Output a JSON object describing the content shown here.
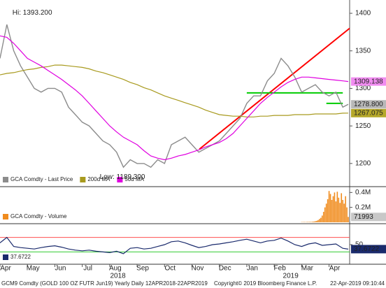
{
  "chart_data": [
    {
      "type": "line",
      "x": [
        0,
        0.25,
        0.5,
        0.75,
        1,
        1.25,
        1.5,
        1.75,
        2,
        2.25,
        2.5,
        2.75,
        3,
        3.25,
        3.5,
        3.75,
        4,
        4.25,
        4.5,
        4.75,
        5,
        5.25,
        5.5,
        5.75,
        6,
        6.25,
        6.5,
        6.75,
        7,
        7.25,
        7.5,
        7.75,
        8,
        8.25,
        8.5,
        8.75,
        9,
        9.25,
        9.5,
        9.75,
        10,
        10.25,
        10.5,
        10.75,
        11,
        11.25,
        11.5,
        11.75,
        12,
        12.25,
        12.5,
        12.7
      ],
      "series": [
        {
          "name": "GCA Comdty - Last Price",
          "color": "#8c8c8c",
          "last_label": "1278.800",
          "tag_color": "#b8b8b8",
          "values": [
            1340,
            1385,
            1350,
            1330,
            1315,
            1300,
            1295,
            1300,
            1300,
            1295,
            1275,
            1265,
            1255,
            1250,
            1240,
            1230,
            1225,
            1215,
            1195,
            1205,
            1200,
            1200,
            1195,
            1205,
            1200,
            1225,
            1230,
            1235,
            1225,
            1215,
            1220,
            1225,
            1230,
            1240,
            1250,
            1260,
            1280,
            1290,
            1290,
            1310,
            1320,
            1340,
            1330,
            1315,
            1295,
            1300,
            1305,
            1295,
            1290,
            1295,
            1275,
            1278.8
          ]
        },
        {
          "name": "200d MA",
          "color": "#a89a1e",
          "last_label": "1267.075",
          "tag_color": "#b5a82a",
          "values": [
            1318,
            1320,
            1321,
            1323,
            1325,
            1326,
            1328,
            1329,
            1331,
            1331,
            1330,
            1329,
            1328,
            1326,
            1323,
            1321,
            1318,
            1315,
            1312,
            1308,
            1305,
            1301,
            1298,
            1294,
            1290,
            1287,
            1284,
            1281,
            1278,
            1275,
            1271,
            1268,
            1265,
            1264,
            1263,
            1263,
            1262,
            1262,
            1263,
            1263,
            1264,
            1264,
            1264,
            1265,
            1265,
            1265,
            1266,
            1266,
            1266,
            1266,
            1267,
            1267.075
          ]
        },
        {
          "name": "50d MA",
          "color": "#e000e0",
          "last_label": "1309.138",
          "tag_color": "#f08cf0",
          "values": [
            1370,
            1368,
            1360,
            1350,
            1340,
            1335,
            1330,
            1324,
            1318,
            1312,
            1305,
            1298,
            1290,
            1280,
            1270,
            1260,
            1250,
            1242,
            1235,
            1230,
            1225,
            1217,
            1210,
            1207,
            1205,
            1207,
            1210,
            1212,
            1215,
            1218,
            1222,
            1225,
            1228,
            1233,
            1240,
            1250,
            1260,
            1270,
            1280,
            1288,
            1295,
            1302,
            1308,
            1312,
            1315,
            1315,
            1314,
            1313,
            1312,
            1311,
            1310,
            1309.138
          ]
        }
      ],
      "xlim": [
        0,
        12.75
      ],
      "ylim": [
        1171,
        1414
      ],
      "yticks": [
        1200,
        1250,
        1300,
        1350,
        1400
      ],
      "annotations": [
        {
          "text": "Hi: 1393.200",
          "x": 0.25,
          "y": 1393.2
        },
        {
          "text": "Low: 1189.300",
          "x": 4.3,
          "y": 1189.3
        }
      ],
      "trendlines": [
        {
          "color": "#ff0000",
          "x": [
            7.27,
            12.75
          ],
          "y": [
            1219,
            1380
          ]
        },
        {
          "color": "#00cc00",
          "x": [
            9.0,
            12.5
          ],
          "y": [
            1294,
            1294
          ]
        },
        {
          "color": "#00cc00",
          "x": [
            11.9,
            12.5
          ],
          "y": [
            1280,
            1280
          ]
        }
      ]
    },
    {
      "type": "bar",
      "x": [
        11.0,
        11.05,
        11.1,
        11.15,
        11.2,
        11.25,
        11.3,
        11.35,
        11.4,
        11.45,
        11.5,
        11.55,
        11.6,
        11.65,
        11.7,
        11.75,
        11.8,
        11.85,
        11.9,
        11.95,
        12.0,
        12.05,
        12.1,
        12.15,
        12.2,
        12.25,
        12.3,
        12.35,
        12.4,
        12.45,
        12.5,
        12.55,
        12.6,
        12.65,
        12.7
      ],
      "series": [
        {
          "name": "GCA Comdty - Volume",
          "color": "#f08c1e",
          "last_label": "71993",
          "tag_color": "#c8c8c8",
          "values": [
            3000,
            3500,
            4000,
            3000,
            5000,
            4500,
            6000,
            5000,
            8000,
            10000,
            15000,
            20000,
            30000,
            45000,
            60000,
            90000,
            140000,
            200000,
            250000,
            310000,
            420000,
            380000,
            300000,
            350000,
            400000,
            280000,
            410000,
            330000,
            260000,
            390000,
            300000,
            250000,
            350000,
            200000,
            71993
          ]
        }
      ],
      "xlim": [
        0,
        12.75
      ],
      "ylim": [
        0,
        450000
      ],
      "yticks": [
        {
          "value": 200000,
          "label": "0.2M"
        },
        {
          "value": 400000,
          "label": "0.4M"
        }
      ]
    },
    {
      "type": "line",
      "x": [
        0,
        0.25,
        0.5,
        0.75,
        1,
        1.25,
        1.5,
        1.75,
        2,
        2.25,
        2.5,
        2.75,
        3,
        3.25,
        3.5,
        3.75,
        4,
        4.25,
        4.5,
        4.75,
        5,
        5.25,
        5.5,
        5.75,
        6,
        6.25,
        6.5,
        6.75,
        7,
        7.25,
        7.5,
        7.75,
        8,
        8.25,
        8.5,
        8.75,
        9,
        9.25,
        9.5,
        9.75,
        10,
        10.25,
        10.5,
        10.75,
        11,
        11.25,
        11.5,
        11.75,
        12,
        12.25,
        12.5,
        12.7
      ],
      "series": [
        {
          "color": "#1a2a6c",
          "last_label": "37.6722",
          "tag_color": "#1a2a6c",
          "values": [
            55,
            70,
            45,
            42,
            40,
            38,
            42,
            45,
            47,
            43,
            38,
            35,
            33,
            35,
            32,
            30,
            28,
            32,
            25,
            40,
            42,
            38,
            40,
            45,
            50,
            58,
            60,
            55,
            48,
            42,
            45,
            50,
            52,
            55,
            58,
            62,
            65,
            60,
            55,
            60,
            62,
            68,
            60,
            50,
            45,
            52,
            55,
            48,
            50,
            52,
            40,
            37.6722
          ]
        }
      ],
      "levels": [
        {
          "value": 70,
          "color": "#ff5050"
        },
        {
          "value": 30,
          "color": "#33cc33"
        }
      ],
      "xlim": [
        0,
        12.75
      ],
      "ylim": [
        0,
        100
      ],
      "yticks": [
        50
      ],
      "xticks": [
        {
          "value": 0,
          "label": "Apr"
        },
        {
          "value": 1,
          "label": "May"
        },
        {
          "value": 2,
          "label": "Jun"
        },
        {
          "value": 3,
          "label": "Jul"
        },
        {
          "value": 4,
          "label": "Aug"
        },
        {
          "value": 5,
          "label": "Sep"
        },
        {
          "value": 6,
          "label": "Oct"
        },
        {
          "value": 7,
          "label": "Nov"
        },
        {
          "value": 8,
          "label": "Dec"
        },
        {
          "value": 9,
          "label": "Jan"
        },
        {
          "value": 10,
          "label": "Feb"
        },
        {
          "value": 11,
          "label": "Mar"
        },
        {
          "value": 12,
          "label": "Apr"
        }
      ],
      "year_ticks": [
        {
          "value": 4.3,
          "label": "2018"
        },
        {
          "value": 10.6,
          "label": "2019"
        }
      ]
    }
  ],
  "footer": [
    "GCM9 Comdty (GOLD 100 OZ FUTR  Jun19) Yearly  Daily 12APR2018-22APR2019",
    "Copyright© 2019 Bloomberg Finance L.P.",
    "22-Apr-2019 09:10:44"
  ]
}
